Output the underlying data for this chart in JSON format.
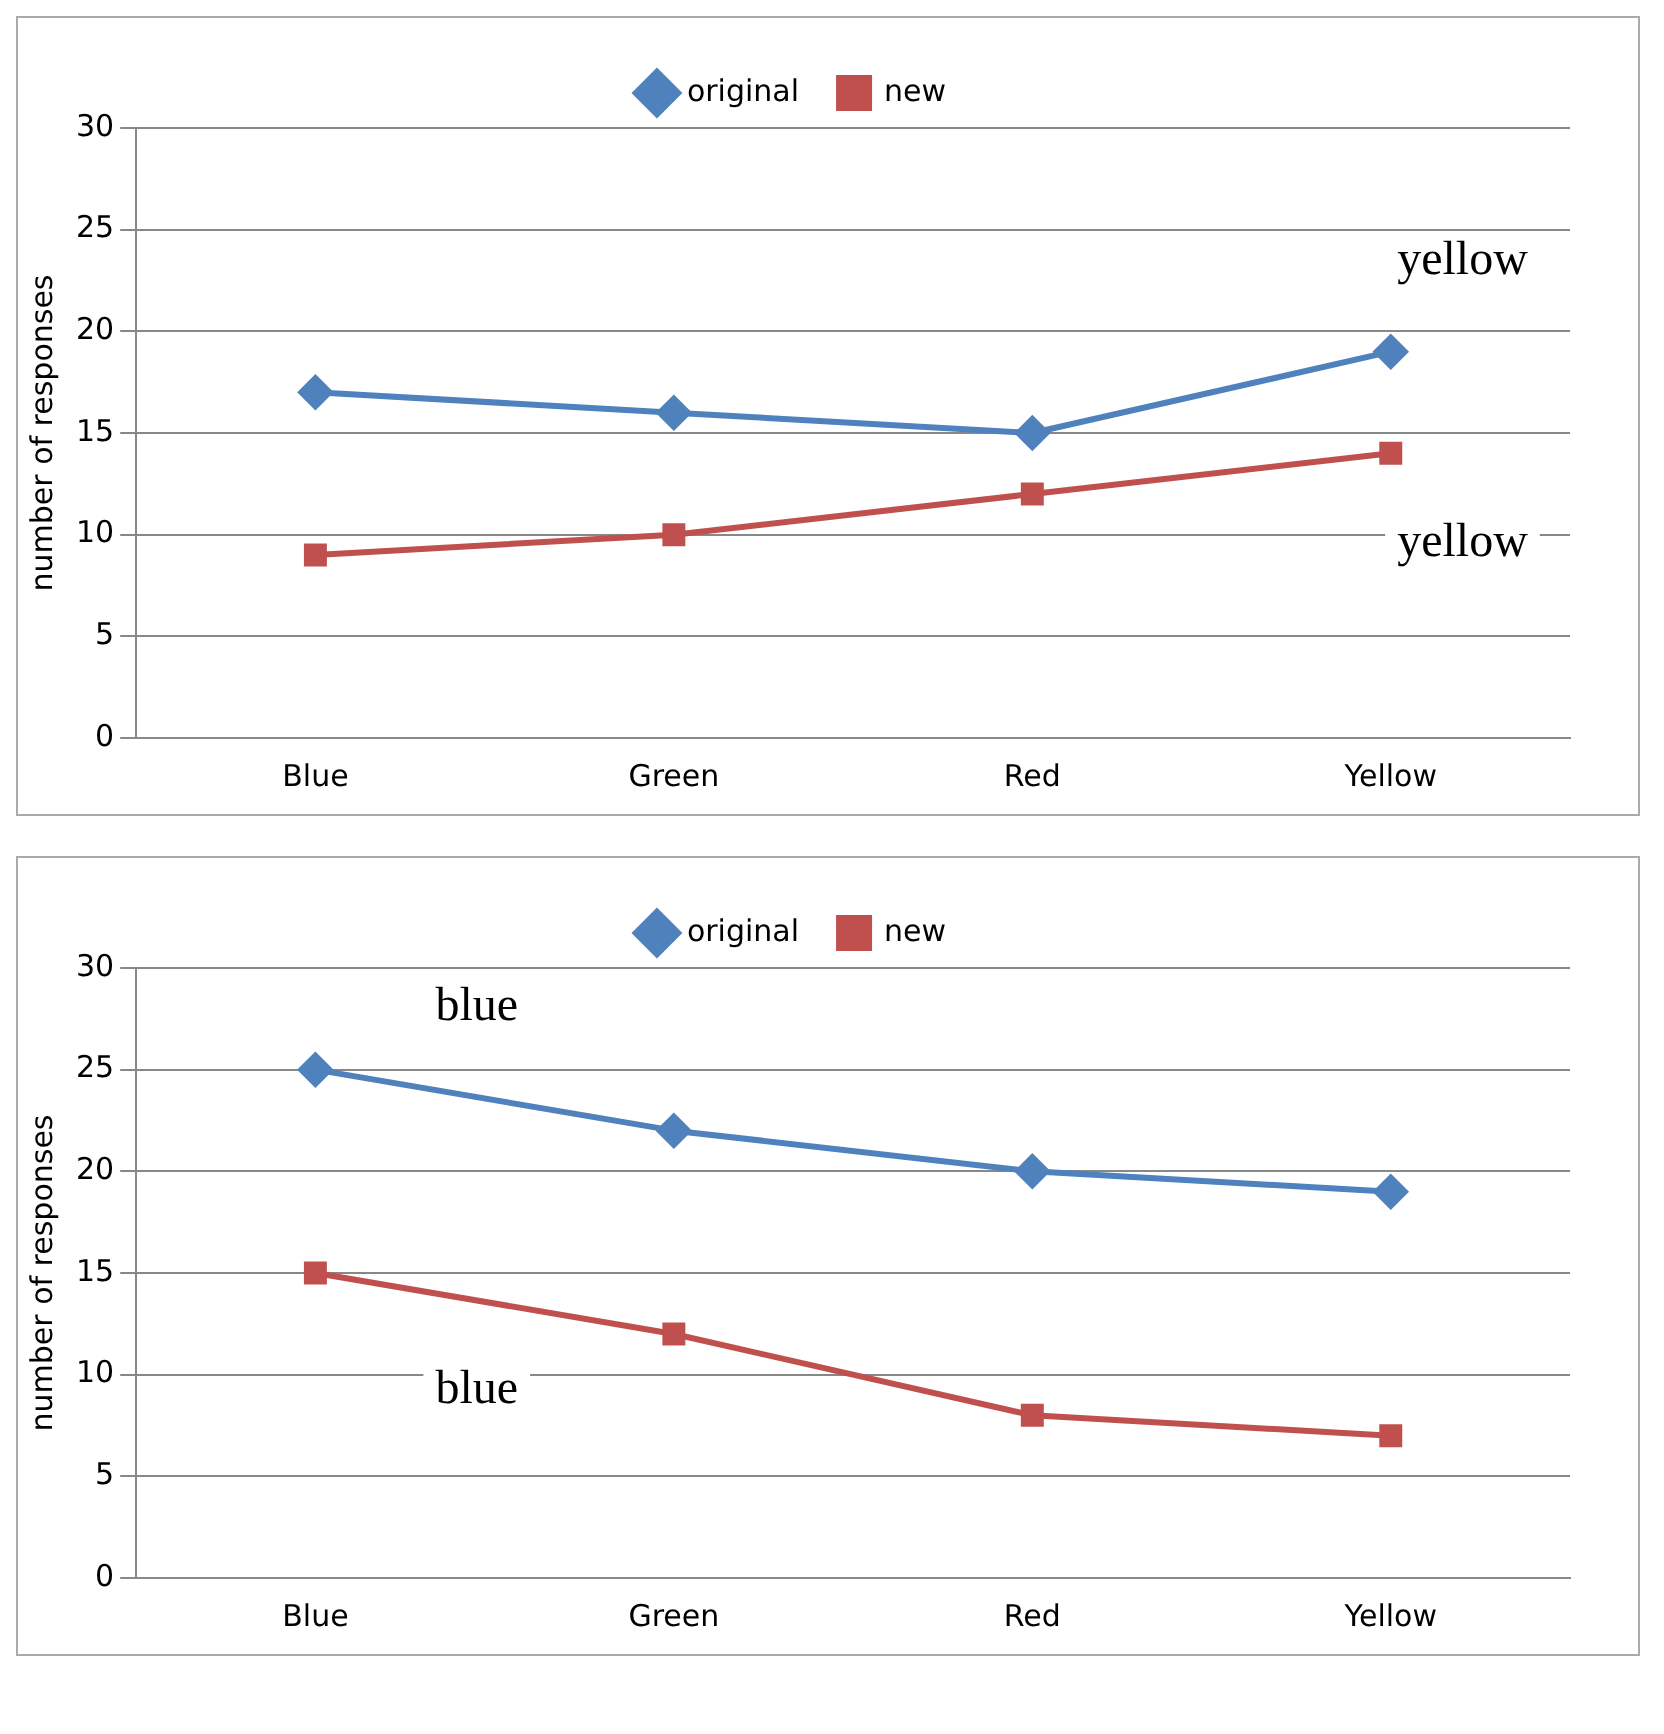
{
  "chart_data": [
    {
      "type": "line",
      "categories": [
        "Blue",
        "Green",
        "Red",
        "Yellow"
      ],
      "ylabel": "number of responses",
      "ylim": [
        0,
        30
      ],
      "yticks": [
        0,
        5,
        10,
        15,
        20,
        25,
        30
      ],
      "grid": "y",
      "legend": "top",
      "line_style": "solid",
      "series": [
        {
          "name": "original",
          "color": "#4f81bd",
          "values": [
            17,
            16,
            15,
            19
          ],
          "marker": "diamond"
        },
        {
          "name": "new",
          "color": "#c0504d",
          "values": [
            9,
            10,
            12,
            14
          ],
          "marker": "square"
        }
      ],
      "annotations": [
        "yellow",
        "yellow"
      ]
    },
    {
      "type": "line",
      "categories": [
        "Blue",
        "Green",
        "Red",
        "Yellow"
      ],
      "ylabel": "number of responses",
      "ylim": [
        0,
        30
      ],
      "yticks": [
        0,
        5,
        10,
        15,
        20,
        25,
        30
      ],
      "grid": "y",
      "legend": "top",
      "line_style": "solid",
      "series": [
        {
          "name": "original",
          "color": "#4f81bd",
          "values": [
            25,
            22,
            20,
            19
          ],
          "marker": "diamond"
        },
        {
          "name": "new",
          "color": "#c0504d",
          "values": [
            15,
            12,
            8,
            7
          ],
          "marker": "square"
        }
      ],
      "annotations": [
        "blue",
        "blue"
      ]
    }
  ]
}
